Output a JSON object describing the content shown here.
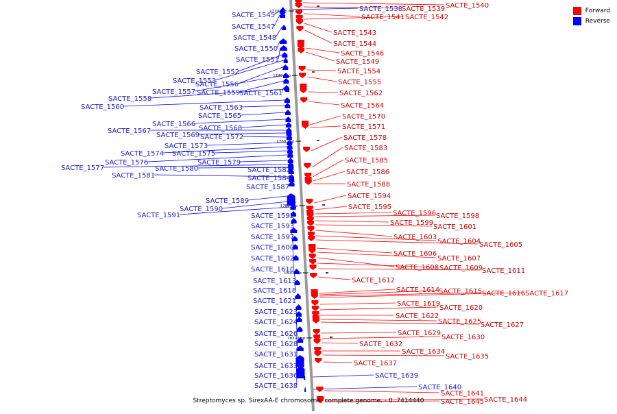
{
  "title": "Streptomyces sp. SirexAA-E chromosome, complete genome. - 0..7414440",
  "legend": {
    "forward_label": "Forward",
    "reverse_label": "Reverse",
    "forward_color": "#ff0000",
    "reverse_color": "#0000ff",
    "label_forward_color": "#cc0000",
    "label_reverse_color": "#1a1acc"
  },
  "ticks": [
    "1720 kbp",
    "1740 kbp",
    "1760 kbp",
    "1780 kbp",
    "1800 kbp",
    "1820 kbp"
  ],
  "genes_reverse": [
    "SACTE_1538",
    "SACTE_1545",
    "SACTE_1547",
    "SACTE_1548",
    "SACTE_1550",
    "SACTE_1551",
    "SACTE_1552",
    "SACTE_1553",
    "SACTE_1556",
    "SACTE_1557",
    "SACTE_1559",
    "SACTE_1561",
    "SACTE_1558",
    "SACTE_1560",
    "SACTE_1563",
    "SACTE_1565",
    "SACTE_1566",
    "SACTE_1568",
    "SACTE_1567",
    "SACTE_1569",
    "SACTE_1572",
    "SACTE_1573",
    "SACTE_1574",
    "SACTE_1575",
    "SACTE_1576",
    "SACTE_1579",
    "SACTE_1577",
    "SACTE_1580",
    "SACTE_1582",
    "SACTE_1581",
    "SACTE_1584",
    "SACTE_1587",
    "SACTE_1589",
    "SACTE_1590",
    "SACTE_1591",
    "SACTE_1592",
    "SACTE_1593",
    "SACTE_1597",
    "SACTE_1600",
    "SACTE_1602",
    "SACTE_1610",
    "SACTE_1613",
    "SACTE_1618",
    "SACTE_1621",
    "SACTE_1623",
    "SACTE_1624",
    "SACTE_1626",
    "SACTE_1628",
    "SACTE_1631",
    "SACTE_1633",
    "SACTE_1636",
    "SACTE_1638",
    "SACTE_1639",
    "SACTE_1640"
  ],
  "genes_forward": [
    "SACTE_1539",
    "SACTE_1540",
    "SACTE_1541",
    "SACTE_1542",
    "SACTE_1543",
    "SACTE_1544",
    "SACTE_1546",
    "SACTE_1549",
    "SACTE_1554",
    "SACTE_1555",
    "SACTE_1562",
    "SACTE_1564",
    "SACTE_1570",
    "SACTE_1571",
    "SACTE_1578",
    "SACTE_1583",
    "SACTE_1585",
    "SACTE_1586",
    "SACTE_1588",
    "SACTE_1594",
    "SACTE_1595",
    "SACTE_1596",
    "SACTE_1598",
    "SACTE_1599",
    "SACTE_1601",
    "SACTE_1603",
    "SACTE_1604",
    "SACTE_1605",
    "SACTE_1606",
    "SACTE_1607",
    "SACTE_1608",
    "SACTE_1609",
    "SACTE_1611",
    "SACTE_1612",
    "SACTE_1614",
    "SACTE_1615",
    "SACTE_1616",
    "SACTE_1617",
    "SACTE_1619",
    "SACTE_1620",
    "SACTE_1622",
    "SACTE_1625",
    "SACTE_1627",
    "SACTE_1629",
    "SACTE_1630",
    "SACTE_1632",
    "SACTE_1634",
    "SACTE_1635",
    "SACTE_1637",
    "SACTE_1641",
    "SACTE_1644",
    "SACTE_1645"
  ]
}
